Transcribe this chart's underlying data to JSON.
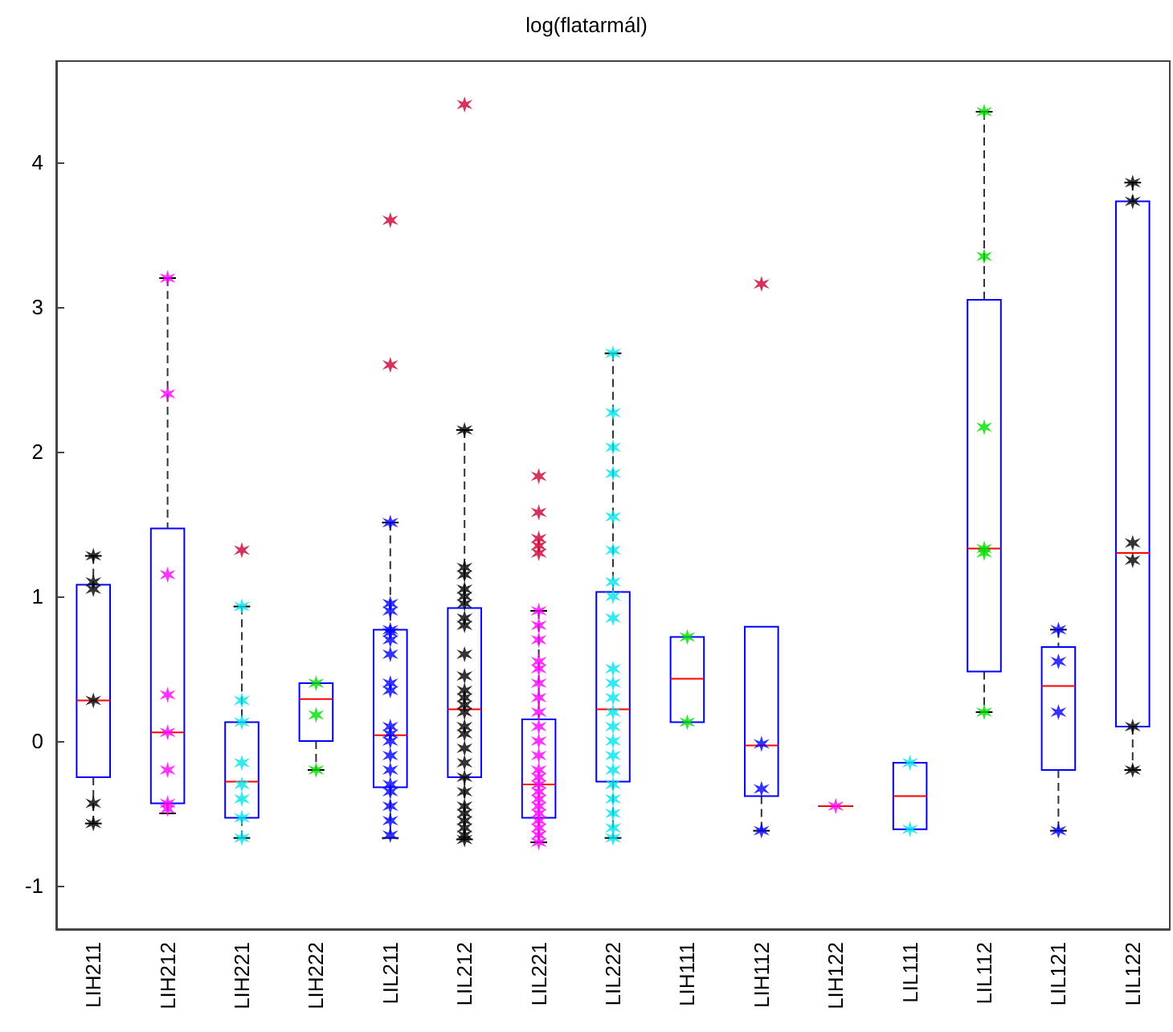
{
  "chart_data": {
    "type": "box",
    "title": "log(flatarmál)",
    "categories": [
      "LIH211",
      "LIH212",
      "LIH221",
      "LIH222",
      "LIL211",
      "LIL212",
      "LIL221",
      "LIL222",
      "LIH111",
      "LIH112",
      "LIH122",
      "LIL111",
      "LIL112",
      "LIL121",
      "LIL122"
    ],
    "ylim": [
      -1.3,
      4.7
    ],
    "yticks": [
      -1,
      0,
      1,
      2,
      3,
      4
    ],
    "grid": false,
    "marker": "cross",
    "boxes": [
      {
        "low": -0.57,
        "q1": -0.25,
        "median": 0.28,
        "q3": 1.08,
        "high": 1.28
      },
      {
        "low": -0.5,
        "q1": -0.43,
        "median": 0.06,
        "q3": 1.47,
        "high": 3.2
      },
      {
        "low": -0.67,
        "q1": -0.53,
        "median": -0.28,
        "q3": 0.13,
        "high": 0.93,
        "outliers": [
          1.32
        ]
      },
      {
        "low": -0.2,
        "q1": 0.0,
        "median": 0.29,
        "q3": 0.4,
        "high": 0.4
      },
      {
        "low": -0.67,
        "q1": -0.32,
        "median": 0.04,
        "q3": 0.77,
        "high": 1.51,
        "outliers": [
          2.6,
          3.6
        ]
      },
      {
        "low": -0.68,
        "q1": -0.25,
        "median": 0.22,
        "q3": 0.92,
        "high": 2.15,
        "outliers": [
          4.4
        ]
      },
      {
        "low": -0.7,
        "q1": -0.53,
        "median": -0.3,
        "q3": 0.15,
        "high": 0.9,
        "outliers": [
          1.3,
          1.35,
          1.4,
          1.58,
          1.83
        ]
      },
      {
        "low": -0.67,
        "q1": -0.28,
        "median": 0.22,
        "q3": 1.03,
        "high": 2.68
      },
      {
        "low": 0.13,
        "q1": 0.13,
        "median": 0.43,
        "q3": 0.72,
        "high": 0.72
      },
      {
        "low": -0.62,
        "q1": -0.38,
        "median": -0.03,
        "q3": 0.79,
        "high": 0.79,
        "outliers": [
          3.16
        ]
      },
      {
        "low": -0.45,
        "q1": -0.45,
        "median": -0.45,
        "q3": -0.45,
        "high": -0.45
      },
      {
        "low": -0.61,
        "q1": -0.61,
        "median": -0.38,
        "q3": -0.15,
        "high": -0.15
      },
      {
        "low": 0.2,
        "q1": 0.48,
        "median": 1.33,
        "q3": 3.05,
        "high": 4.35
      },
      {
        "low": -0.62,
        "q1": -0.2,
        "median": 0.38,
        "q3": 0.65,
        "high": 0.77
      },
      {
        "low": -0.2,
        "q1": 0.1,
        "median": 1.3,
        "q3": 3.73,
        "high": 3.86
      }
    ],
    "series": [
      {
        "type": "scatter",
        "color": "#000000",
        "x": [
          "LIH211",
          "LIH211",
          "LIH211",
          "LIH211",
          "LIH211",
          "LIH211",
          "LIL212",
          "LIL212",
          "LIL212",
          "LIL212",
          "LIL212",
          "LIL212",
          "LIL212",
          "LIL212",
          "LIL212",
          "LIL212",
          "LIL212",
          "LIL212",
          "LIL212",
          "LIL212",
          "LIL212",
          "LIL212",
          "LIL212",
          "LIL212",
          "LIL212",
          "LIL212",
          "LIL212",
          "LIL212",
          "LIL212",
          "LIL212",
          "LIL212",
          "LIL212",
          "LIL122",
          "LIL122",
          "LIL122",
          "LIL122",
          "LIL122",
          "LIL122"
        ],
        "values": [
          1.28,
          1.1,
          1.05,
          0.28,
          -0.43,
          -0.57,
          2.15,
          1.2,
          1.15,
          1.05,
          1.0,
          0.95,
          0.85,
          0.8,
          0.6,
          0.45,
          0.35,
          0.3,
          0.25,
          0.2,
          0.1,
          0.05,
          -0.05,
          -0.15,
          -0.25,
          -0.35,
          -0.45,
          -0.5,
          -0.55,
          -0.6,
          -0.65,
          -0.68,
          3.86,
          3.73,
          1.37,
          1.25,
          0.1,
          -0.2
        ]
      },
      {
        "type": "scatter",
        "color": "#ff00ff",
        "x": [
          "LIH212",
          "LIH212",
          "LIH212",
          "LIH212",
          "LIH212",
          "LIH212",
          "LIH212",
          "LIH212",
          "LIL221",
          "LIL221",
          "LIL221",
          "LIL221",
          "LIL221",
          "LIL221",
          "LIL221",
          "LIL221",
          "LIL221",
          "LIL221",
          "LIL221",
          "LIL221",
          "LIL221",
          "LIL221",
          "LIL221",
          "LIL221",
          "LIL221",
          "LIL221",
          "LIL221",
          "LIL221",
          "LIL221",
          "LIL221",
          "LIH122"
        ],
        "values": [
          3.2,
          2.4,
          1.15,
          0.32,
          0.06,
          -0.2,
          -0.43,
          -0.47,
          0.9,
          0.8,
          0.7,
          0.55,
          0.5,
          0.4,
          0.3,
          0.2,
          0.1,
          0.0,
          -0.1,
          -0.2,
          -0.25,
          -0.3,
          -0.35,
          -0.4,
          -0.45,
          -0.5,
          -0.55,
          -0.6,
          -0.65,
          -0.7,
          -0.45
        ]
      },
      {
        "type": "scatter",
        "color": "#00e5ee",
        "x": [
          "LIH221",
          "LIH221",
          "LIH221",
          "LIH221",
          "LIH221",
          "LIH221",
          "LIH221",
          "LIH221",
          "LIL222",
          "LIL222",
          "LIL222",
          "LIL222",
          "LIL222",
          "LIL222",
          "LIL222",
          "LIL222",
          "LIL222",
          "LIL222",
          "LIL222",
          "LIL222",
          "LIL222",
          "LIL222",
          "LIL222",
          "LIL222",
          "LIL222",
          "LIL222",
          "LIL222",
          "LIL222",
          "LIL222",
          "LIL222",
          "LIL111",
          "LIL111"
        ],
        "values": [
          0.93,
          0.28,
          0.13,
          -0.15,
          -0.3,
          -0.4,
          -0.53,
          -0.67,
          2.68,
          2.27,
          2.03,
          1.85,
          1.55,
          1.32,
          1.1,
          1.0,
          0.85,
          0.5,
          0.4,
          0.3,
          0.2,
          0.1,
          0.0,
          -0.1,
          -0.2,
          -0.3,
          -0.4,
          -0.5,
          -0.6,
          -0.67,
          -0.15,
          -0.61
        ]
      },
      {
        "type": "scatter",
        "color": "#00dd00",
        "x": [
          "LIH222",
          "LIH222",
          "LIH222",
          "LIH111",
          "LIH111",
          "LIL112",
          "LIL112",
          "LIL112",
          "LIL112",
          "LIL112",
          "LIL112"
        ],
        "values": [
          0.4,
          0.18,
          -0.2,
          0.72,
          0.13,
          4.35,
          3.35,
          2.17,
          1.33,
          1.3,
          0.2
        ]
      },
      {
        "type": "scatter",
        "color": "#0000ff",
        "x": [
          "LIL211",
          "LIL211",
          "LIL211",
          "LIL211",
          "LIL211",
          "LIL211",
          "LIL211",
          "LIL211",
          "LIL211",
          "LIL211",
          "LIL211",
          "LIL211",
          "LIL211",
          "LIL211",
          "LIL211",
          "LIL211",
          "LIL211",
          "LIL211",
          "LIL211",
          "LIH112",
          "LIH112",
          "LIH112",
          "LIL121",
          "LIL121",
          "LIL121",
          "LIL121"
        ],
        "values": [
          1.51,
          0.95,
          0.9,
          0.77,
          0.75,
          0.7,
          0.6,
          0.4,
          0.35,
          0.1,
          0.05,
          0.0,
          -0.1,
          -0.2,
          -0.3,
          -0.35,
          -0.45,
          -0.55,
          -0.65,
          -0.02,
          -0.33,
          -0.62,
          0.77,
          0.55,
          0.2,
          -0.62
        ]
      }
    ]
  }
}
